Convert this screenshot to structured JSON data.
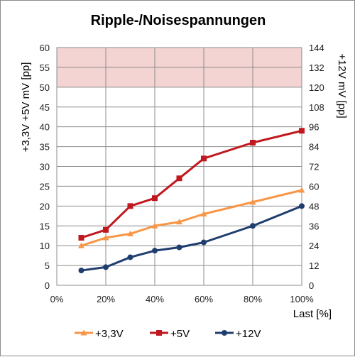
{
  "chart_data": {
    "type": "line",
    "title": "Ripple-/Noisespannungen",
    "xlabel": "Last [%]",
    "ylabel_left": "+3,3V  +5V     mV [pp]",
    "ylabel_right": "+12V     mV [pp]",
    "x": [
      10,
      20,
      30,
      40,
      50,
      60,
      80,
      100
    ],
    "x_tick_labels": [
      "0%",
      "20%",
      "40%",
      "60%",
      "80%",
      "100%"
    ],
    "x_tick_values": [
      0,
      20,
      40,
      60,
      80,
      100
    ],
    "ylim_left": [
      0,
      60
    ],
    "ylim_right": [
      0,
      144
    ],
    "y_ticks_left": [
      "0",
      "5",
      "10",
      "15",
      "20",
      "25",
      "30",
      "35",
      "40",
      "45",
      "50",
      "55",
      "60"
    ],
    "y_ticks_right": [
      "0",
      "12",
      "24",
      "36",
      "48",
      "60",
      "72",
      "84",
      "96",
      "108",
      "120",
      "132",
      "144"
    ],
    "limit_band": {
      "from": 50,
      "to": 60,
      "color": "#f4d3d3"
    },
    "grid": true,
    "legend_position": "bottom",
    "series": [
      {
        "name": "+3,3V",
        "axis": "left",
        "color": "#f79646",
        "marker": "triangle",
        "values": [
          10,
          12,
          13,
          15,
          16,
          18,
          21,
          24
        ]
      },
      {
        "name": "+5V",
        "axis": "left",
        "color": "#c0181e",
        "marker": "square",
        "values": [
          12,
          14,
          20,
          22,
          27,
          32,
          36,
          39
        ]
      },
      {
        "name": "+12V",
        "axis": "right",
        "color": "#1f3d6e",
        "marker": "circle",
        "values": [
          9,
          11,
          17,
          21,
          23,
          26,
          36,
          48
        ]
      }
    ]
  }
}
